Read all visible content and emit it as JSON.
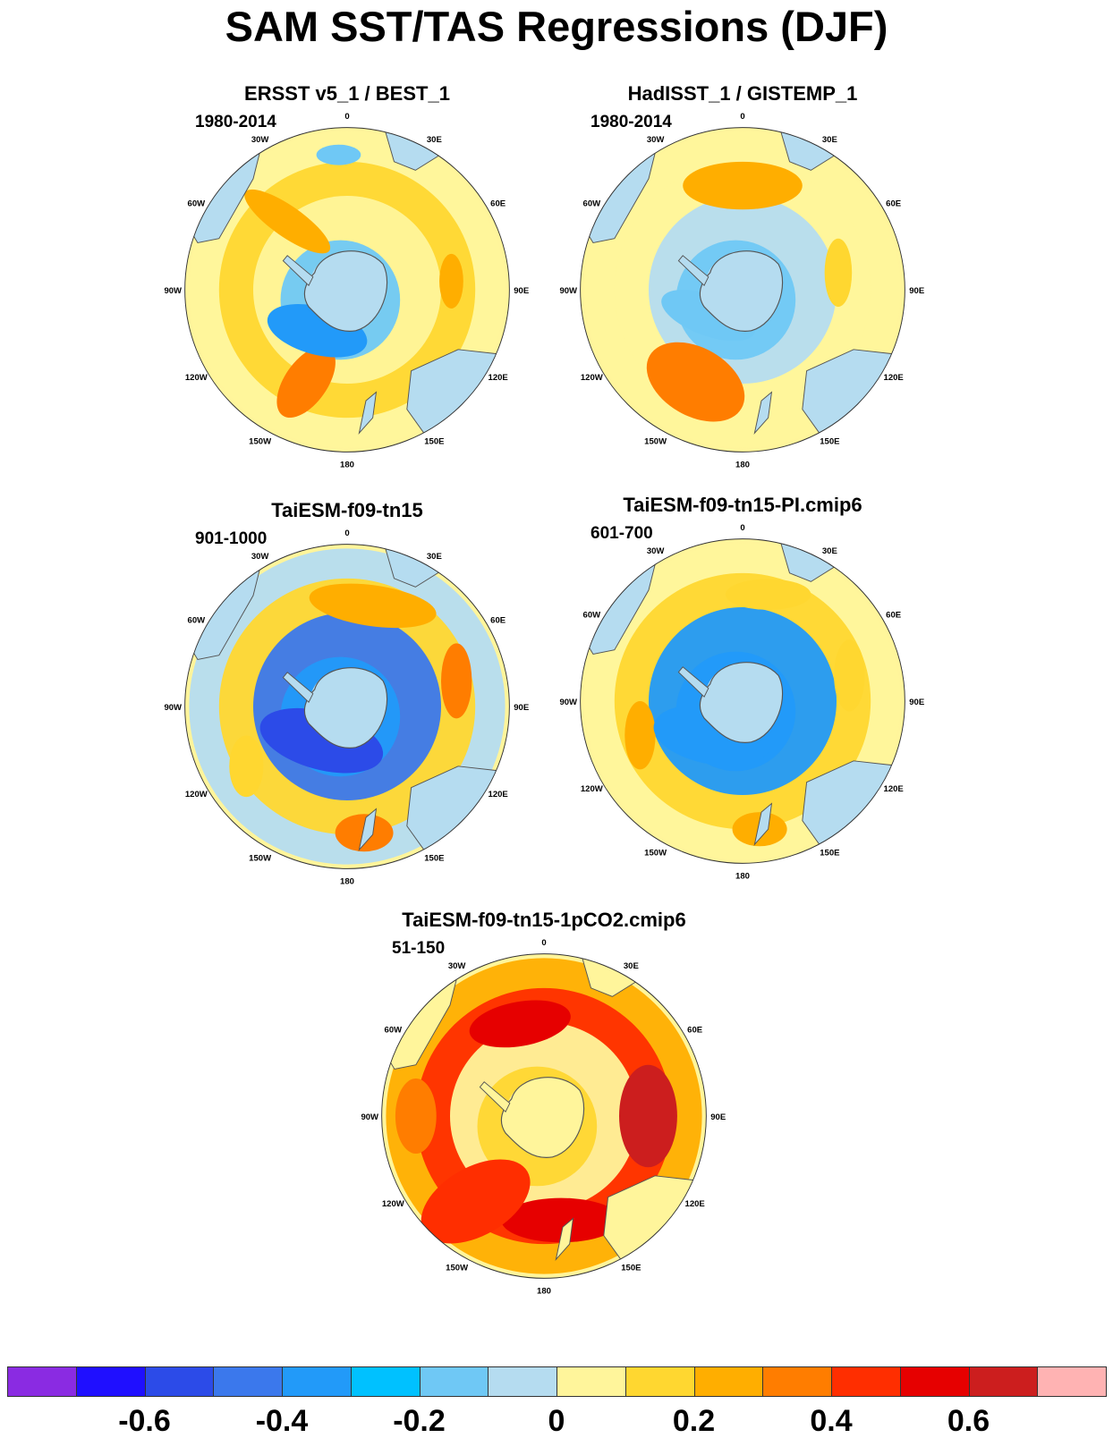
{
  "title": "SAM SST/TAS Regressions (DJF)",
  "colors": {
    "land": "#b5dcf0",
    "ocean_default": "#fff59b",
    "coast": "#555555",
    "outline": "#333333"
  },
  "longitude_labels": [
    "0",
    "30E",
    "60E",
    "90E",
    "120E",
    "150E",
    "180",
    "150W",
    "120W",
    "90W",
    "60W",
    "30W"
  ],
  "colorbar": {
    "colors": [
      "#8a2be2",
      "#1f0fff",
      "#2c4be8",
      "#3b78ec",
      "#229af9",
      "#00c1ff",
      "#6fc8f5",
      "#b5dcf0",
      "#fff59b",
      "#ffd730",
      "#ffae00",
      "#ff7d00",
      "#ff2e00",
      "#e60000",
      "#cc1e1e",
      "#ffb3b3"
    ],
    "tick_labels": [
      "-0.6",
      "-0.4",
      "-0.2",
      "0",
      "0.2",
      "0.4",
      "0.6"
    ]
  },
  "panels": [
    {
      "id": "p1",
      "title": "ERSST v5_1 / BEST_1",
      "period": "1980-2014",
      "ring_colors": [
        "#b5dcf0",
        "#6fc8f5",
        "#fff59b",
        "#ffd730",
        "#fff59b"
      ],
      "blobs": [
        {
          "sector": "120W-150W",
          "value": 0.4,
          "color": "#ff7d00"
        },
        {
          "sector": "30W-60W",
          "value": 0.3,
          "color": "#ffae00"
        },
        {
          "sector": "90E",
          "value": 0.2,
          "color": "#ffae00"
        },
        {
          "sector": "150W-90W inner",
          "value": -0.4,
          "color": "#229af9"
        },
        {
          "sector": "0 outer",
          "value": -0.2,
          "color": "#6fc8f5"
        }
      ]
    },
    {
      "id": "p2",
      "title": "HadISST_1 / GISTEMP_1",
      "period": "1980-2014",
      "ring_colors": [
        "#b5dcf0",
        "#6fc8f5",
        "#b5dcf0",
        "#fff59b",
        "#fff59b"
      ],
      "blobs": [
        {
          "sector": "120W-150W",
          "value": 0.3,
          "color": "#ff7d00"
        },
        {
          "sector": "30W-30E",
          "value": 0.2,
          "color": "#ffae00"
        },
        {
          "sector": "90E",
          "value": 0.1,
          "color": "#ffd730"
        },
        {
          "sector": "150W-90W inner",
          "value": -0.2,
          "color": "#6fc8f5"
        }
      ]
    },
    {
      "id": "p3",
      "title": "TaiESM-f09-tn15",
      "period": "901-1000",
      "ring_colors": [
        "#b5dcf0",
        "#229af9",
        "#3b78ec",
        "#ffd730",
        "#b5dcf0"
      ],
      "blobs": [
        {
          "sector": "30W-60E",
          "value": 0.3,
          "color": "#ffae00"
        },
        {
          "sector": "90E",
          "value": 0.4,
          "color": "#ff7d00"
        },
        {
          "sector": "180",
          "value": 0.4,
          "color": "#ff7d00"
        },
        {
          "sector": "120W",
          "value": 0.2,
          "color": "#ffd730"
        },
        {
          "sector": "90W-150W inner",
          "value": -0.5,
          "color": "#2c4be8"
        }
      ]
    },
    {
      "id": "p4",
      "title": "TaiESM-f09-tn15-PI.cmip6",
      "period": "601-700",
      "ring_colors": [
        "#b5dcf0",
        "#229af9",
        "#229af9",
        "#ffd730",
        "#fff59b"
      ],
      "blobs": [
        {
          "sector": "0-30E",
          "value": 0.2,
          "color": "#ffd730"
        },
        {
          "sector": "90E",
          "value": 0.2,
          "color": "#ffd730"
        },
        {
          "sector": "180",
          "value": 0.3,
          "color": "#ffae00"
        },
        {
          "sector": "120W",
          "value": 0.2,
          "color": "#ffae00"
        },
        {
          "sector": "90W-150W inner",
          "value": -0.4,
          "color": "#229af9"
        }
      ]
    },
    {
      "id": "p5",
      "title": "TaiESM-f09-tn15-1pCO2.cmip6",
      "period": "51-150",
      "ring_colors": [
        "#fff59b",
        "#ffd730",
        "#fff59b",
        "#ff2e00",
        "#ffae00"
      ],
      "blobs": [
        {
          "sector": "30W-30E",
          "value": 0.6,
          "color": "#e60000"
        },
        {
          "sector": "90E",
          "value": 0.7,
          "color": "#cc1e1e"
        },
        {
          "sector": "180",
          "value": 0.6,
          "color": "#e60000"
        },
        {
          "sector": "120W-150W",
          "value": 0.5,
          "color": "#ff2e00"
        },
        {
          "sector": "90W",
          "value": 0.4,
          "color": "#ff7d00"
        }
      ]
    }
  ]
}
